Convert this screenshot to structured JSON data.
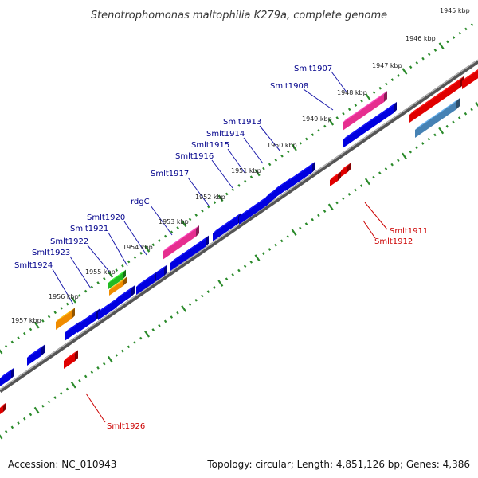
{
  "title": "Stenotrophomonas maltophilia K279a, complete genome",
  "accession": "Accession: NC_010943",
  "topology": "Topology: circular; Length: 4,851,126 bp; Genes: 4,386",
  "kbp_labels": [
    "1945 kbp",
    "1946 kbp",
    "1947 kbp",
    "1948 kbp",
    "1949 kbp",
    "1950 kbp",
    "1951 kbp",
    "1952 kbp",
    "1953 kbp",
    "1954 kbp",
    "1955 kbp",
    "1956 kbp",
    "1957 kbp"
  ],
  "top_gene_labels": [
    "Smlt1907",
    "Smlt1908",
    "Smlt1913",
    "Smlt1914",
    "Smlt1915",
    "Smlt1916",
    "Smlt1917",
    "rdgC",
    "Smlt1920",
    "Smlt1921",
    "Smlt1922",
    "Smlt1923",
    "Smlt1924"
  ],
  "bottom_gene_labels": [
    "Smlt1911",
    "Smlt1912",
    "Smlt1926"
  ],
  "colors": {
    "backbone": "#777777",
    "tick": "#2a8a2a",
    "forward_gene": "#0000e0",
    "magenta_gene": "#e62e8f",
    "orange_gene": "#f08c00",
    "green_gene": "#22bb22",
    "red_gene": "#e00000",
    "steel_gene": "#4682b4",
    "top_label": "#00008b",
    "bottom_label": "#cc0000"
  }
}
